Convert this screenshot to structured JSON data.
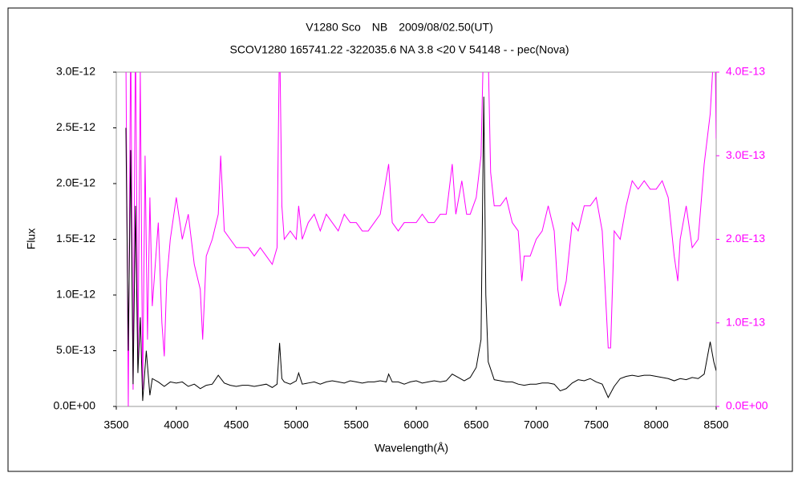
{
  "chart_data": {
    "type": "line",
    "title": "V1280 Sco　NB　2009/08/02.50(UT)",
    "subtitle": "SCOV1280 165741.22 -322035.6 NA 3.8 <20 V 54148 - - pec(Nova)",
    "xlabel": "Wavelength(Å)",
    "ylabel": "Flux",
    "xlim": [
      3500,
      8500
    ],
    "xticks": [
      3500,
      4000,
      4500,
      5000,
      5500,
      6000,
      6500,
      7000,
      7500,
      8000,
      8500
    ],
    "ylim": [
      0,
      3e-12
    ],
    "yticks": [
      {
        "value": 0,
        "label": "0.0E+00"
      },
      {
        "value": 5e-13,
        "label": "5.0E-13"
      },
      {
        "value": 1e-12,
        "label": "1.0E-12"
      },
      {
        "value": 1.5e-12,
        "label": "1.5E-12"
      },
      {
        "value": 2e-12,
        "label": "2.0E-12"
      },
      {
        "value": 2.5e-12,
        "label": "2.5E-12"
      },
      {
        "value": 3e-12,
        "label": "3.0E-12"
      }
    ],
    "y2lim": [
      0,
      4e-13
    ],
    "y2ticks": [
      {
        "value": 0,
        "label": "0.0E+00"
      },
      {
        "value": 1e-13,
        "label": "1.0E-13"
      },
      {
        "value": 2e-13,
        "label": "2.0E-13"
      },
      {
        "value": 3e-13,
        "label": "3.0E-13"
      },
      {
        "value": 4e-13,
        "label": "4.0E-13"
      }
    ],
    "series": [
      {
        "color": "#ff00ff",
        "axis": "y2",
        "x": [
          3580,
          3600,
          3620,
          3640,
          3660,
          3680,
          3700,
          3720,
          3740,
          3760,
          3780,
          3800,
          3850,
          3880,
          3900,
          3920,
          3950,
          4000,
          4050,
          4100,
          4150,
          4200,
          4220,
          4250,
          4300,
          4350,
          4370,
          4400,
          4450,
          4500,
          4550,
          4600,
          4650,
          4700,
          4750,
          4800,
          4840,
          4861,
          4880,
          4900,
          4950,
          5000,
          5020,
          5050,
          5100,
          5150,
          5200,
          5250,
          5300,
          5350,
          5400,
          5450,
          5500,
          5550,
          5600,
          5650,
          5700,
          5770,
          5800,
          5850,
          5900,
          5950,
          6000,
          6050,
          6100,
          6150,
          6200,
          6250,
          6300,
          6330,
          6380,
          6420,
          6450,
          6500,
          6540,
          6563,
          6600,
          6620,
          6650,
          6700,
          6750,
          6800,
          6850,
          6880,
          6900,
          6950,
          7000,
          7050,
          7100,
          7150,
          7180,
          7200,
          7250,
          7300,
          7350,
          7400,
          7450,
          7500,
          7550,
          7600,
          7620,
          7650,
          7700,
          7750,
          7800,
          7850,
          7900,
          7950,
          8000,
          8050,
          8100,
          8150,
          8180,
          8200,
          8250,
          8300,
          8350,
          8400,
          8450,
          8470,
          8490,
          8500
        ],
        "values": [
          4.2e-13,
          0,
          4.5e-13,
          2e-14,
          4.5e-13,
          5e-14,
          4e-13,
          2e-14,
          3e-13,
          8e-14,
          2.5e-13,
          1.2e-13,
          2.2e-13,
          1e-13,
          6e-14,
          1.5e-13,
          2e-13,
          2.5e-13,
          2e-13,
          2.3e-13,
          1.7e-13,
          1.4e-13,
          8e-14,
          1.8e-13,
          2e-13,
          2.3e-13,
          3e-13,
          2.1e-13,
          2e-13,
          1.9e-13,
          1.9e-13,
          1.9e-13,
          1.8e-13,
          1.9e-13,
          1.8e-13,
          1.7e-13,
          1.9e-13,
          4.5e-13,
          2.4e-13,
          2e-13,
          2.1e-13,
          2e-13,
          2.4e-13,
          2e-13,
          2.2e-13,
          2.3e-13,
          2.1e-13,
          2.3e-13,
          2.2e-13,
          2.1e-13,
          2.3e-13,
          2.2e-13,
          2.2e-13,
          2.1e-13,
          2.1e-13,
          2.2e-13,
          2.3e-13,
          2.9e-13,
          2.2e-13,
          2.1e-13,
          2.2e-13,
          2.2e-13,
          2.2e-13,
          2.3e-13,
          2.2e-13,
          2.2e-13,
          2.3e-13,
          2.3e-13,
          2.9e-13,
          2.3e-13,
          2.7e-13,
          2.3e-13,
          2.3e-13,
          2.5e-13,
          3e-13,
          4.5e-13,
          4.2e-13,
          2.8e-13,
          2.4e-13,
          2.4e-13,
          2.5e-13,
          2.2e-13,
          2.1e-13,
          1.5e-13,
          1.8e-13,
          1.8e-13,
          2e-13,
          2.1e-13,
          2.4e-13,
          2.1e-13,
          1.4e-13,
          1.2e-13,
          1.5e-13,
          2.2e-13,
          2.1e-13,
          2.4e-13,
          2.4e-13,
          2.5e-13,
          2.1e-13,
          7e-14,
          7e-14,
          2.1e-13,
          2e-13,
          2.4e-13,
          2.7e-13,
          2.6e-13,
          2.7e-13,
          2.6e-13,
          2.6e-13,
          2.7e-13,
          2.5e-13,
          1.8e-13,
          1.5e-13,
          2e-13,
          2.4e-13,
          1.9e-13,
          2e-13,
          2.9e-13,
          3.5e-13,
          4e-13,
          4.5e-13,
          3.2e-13
        ]
      },
      {
        "color": "#000000",
        "x": [
          3580,
          3600,
          3620,
          3640,
          3660,
          3680,
          3700,
          3720,
          3750,
          3780,
          3800,
          3850,
          3900,
          3950,
          4000,
          4050,
          4100,
          4150,
          4200,
          4250,
          4300,
          4350,
          4400,
          4450,
          4500,
          4550,
          4600,
          4650,
          4700,
          4750,
          4800,
          4840,
          4861,
          4880,
          4900,
          4950,
          5000,
          5020,
          5050,
          5100,
          5150,
          5200,
          5250,
          5300,
          5350,
          5400,
          5450,
          5500,
          5550,
          5600,
          5650,
          5700,
          5750,
          5770,
          5800,
          5850,
          5900,
          5950,
          6000,
          6050,
          6100,
          6150,
          6200,
          6250,
          6300,
          6350,
          6400,
          6450,
          6500,
          6540,
          6563,
          6580,
          6600,
          6650,
          6700,
          6750,
          6800,
          6850,
          6900,
          6950,
          7000,
          7050,
          7100,
          7150,
          7200,
          7250,
          7300,
          7350,
          7400,
          7450,
          7500,
          7550,
          7600,
          7650,
          7700,
          7750,
          7800,
          7850,
          7900,
          7950,
          8000,
          8050,
          8100,
          8150,
          8200,
          8250,
          8300,
          8350,
          8400,
          8450,
          8480,
          8500
        ],
        "values": [
          2.5e-12,
          5e-13,
          2.3e-12,
          2e-13,
          1.8e-12,
          3e-13,
          8e-13,
          5e-14,
          5e-13,
          1e-13,
          2.5e-13,
          2.2e-13,
          1.8e-13,
          2.2e-13,
          2.1e-13,
          2.2e-13,
          1.8e-13,
          2e-13,
          1.6e-13,
          1.9e-13,
          2e-13,
          2.8e-13,
          2.1e-13,
          1.9e-13,
          1.8e-13,
          1.9e-13,
          1.9e-13,
          1.8e-13,
          1.9e-13,
          2e-13,
          1.7e-13,
          2e-13,
          5.7e-13,
          2.5e-13,
          2.2e-13,
          2e-13,
          2.3e-13,
          3e-13,
          2e-13,
          2.1e-13,
          2.2e-13,
          2e-13,
          2.2e-13,
          2.3e-13,
          2.2e-13,
          2.1e-13,
          2.3e-13,
          2.2e-13,
          2.1e-13,
          2.2e-13,
          2.2e-13,
          2.3e-13,
          2.2e-13,
          2.9e-13,
          2.2e-13,
          2.2e-13,
          2e-13,
          2.2e-13,
          2.3e-13,
          2.1e-13,
          2.2e-13,
          2.3e-13,
          2.2e-13,
          2.3e-13,
          2.9e-13,
          2.6e-13,
          2.3e-13,
          2.6e-13,
          3.5e-13,
          6e-13,
          2.78e-12,
          1e-12,
          4e-13,
          2.4e-13,
          2.3e-13,
          2.2e-13,
          2.2e-13,
          2e-13,
          1.9e-13,
          2e-13,
          2e-13,
          2.1e-13,
          2.1e-13,
          2e-13,
          1.4e-13,
          1.6e-13,
          2.1e-13,
          2.4e-13,
          2.3e-13,
          2.5e-13,
          2.2e-13,
          2e-13,
          8e-14,
          1.8e-13,
          2.5e-13,
          2.7e-13,
          2.8e-13,
          2.7e-13,
          2.8e-13,
          2.8e-13,
          2.7e-13,
          2.6e-13,
          2.5e-13,
          2.3e-13,
          2.5e-13,
          2.4e-13,
          2.6e-13,
          2.5e-13,
          2.9e-13,
          5.8e-13,
          4e-13,
          3.2e-13
        ]
      }
    ]
  }
}
